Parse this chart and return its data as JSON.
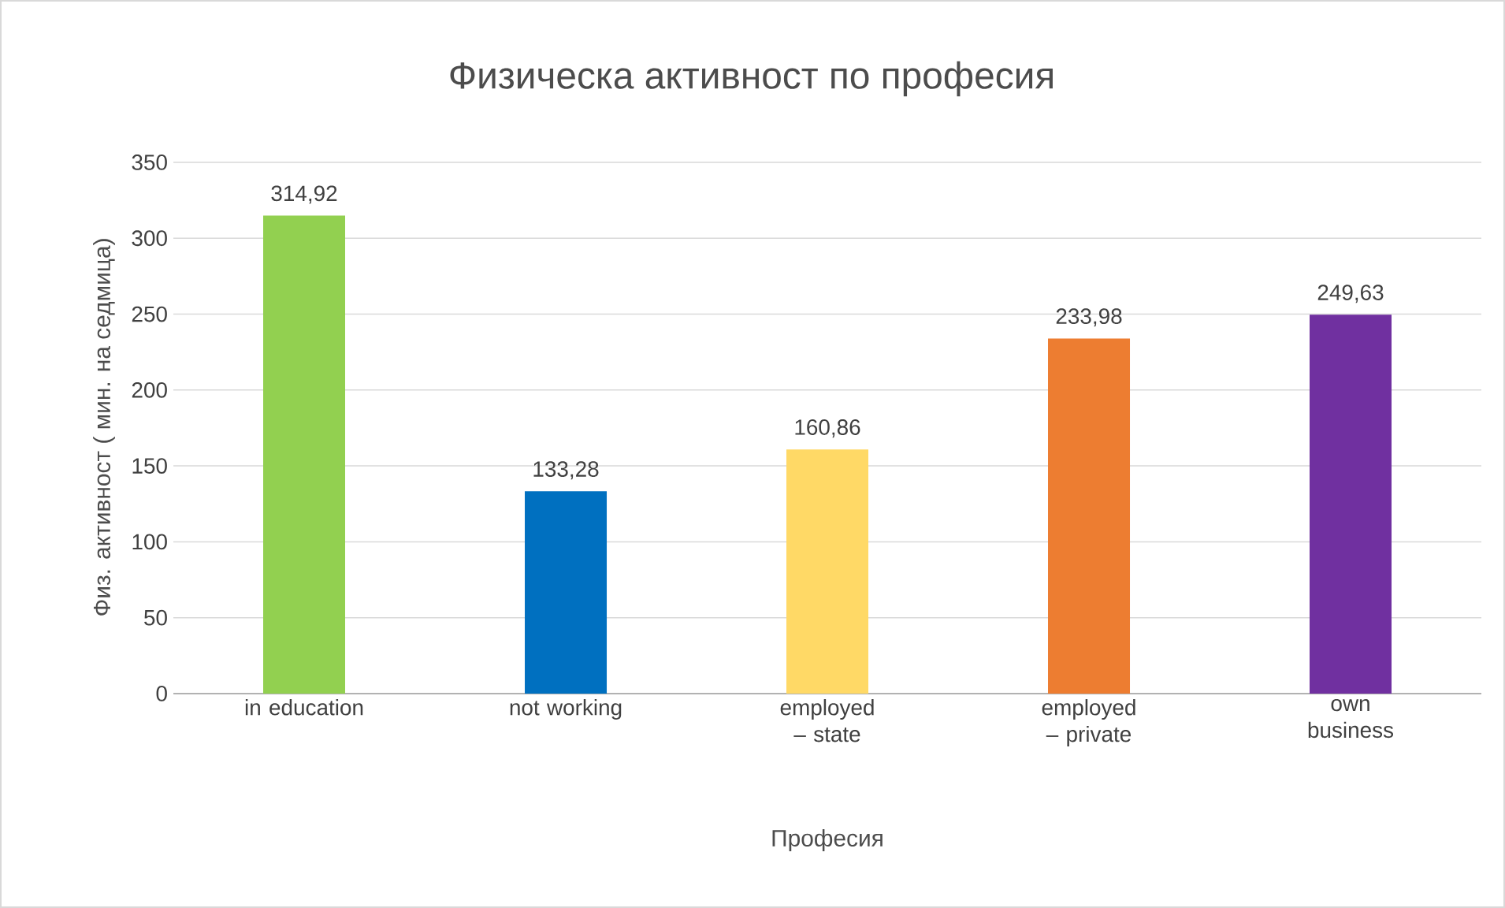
{
  "chart_data": {
    "type": "bar",
    "title": "Физическа активност по професия",
    "xlabel": "Професия",
    "ylabel": "Физ. активност ( мин. на седмица)",
    "categories": [
      "in education",
      "not working",
      "employed – state",
      "employed – private",
      "own business"
    ],
    "values": [
      314.92,
      133.28,
      160.86,
      233.98,
      249.63
    ],
    "colors": [
      "#92d050",
      "#0070c0",
      "#ffd966",
      "#ed7d31",
      "#7030a0"
    ],
    "value_labels": [
      "314,92",
      "133,28",
      "160,86",
      "233,98",
      "249,63"
    ],
    "ylim": [
      0,
      350
    ],
    "yticks": [
      0,
      50,
      100,
      150,
      200,
      250,
      300,
      350
    ],
    "grid": "y"
  }
}
